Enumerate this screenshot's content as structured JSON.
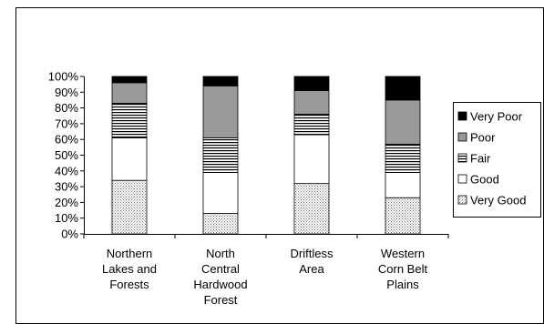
{
  "chart_data": {
    "type": "bar",
    "stacked": true,
    "percent": true,
    "title": "",
    "xlabel": "",
    "ylabel": "",
    "ylim": [
      0,
      100
    ],
    "y_ticks": [
      "0%",
      "10%",
      "20%",
      "30%",
      "40%",
      "50%",
      "60%",
      "70%",
      "80%",
      "90%",
      "100%"
    ],
    "grid": false,
    "legend_position": "right",
    "categories": [
      [
        "Northern",
        "Lakes and",
        "Forests"
      ],
      [
        "North",
        "Central",
        "Hardwood",
        "Forest"
      ],
      [
        "Driftless",
        "Area"
      ],
      [
        "Western",
        "Corn Belt",
        "Plains"
      ]
    ],
    "series": [
      {
        "name": "Very Good",
        "pattern": "dots",
        "color": "#c8c8c8",
        "values": [
          34,
          13,
          32,
          23
        ]
      },
      {
        "name": "Good",
        "pattern": "solid",
        "color": "#ffffff",
        "values": [
          27,
          26,
          31,
          16
        ]
      },
      {
        "name": "Fair",
        "pattern": "hlines",
        "color": "#ffffff",
        "values": [
          22,
          22,
          13,
          18
        ]
      },
      {
        "name": "Poor",
        "pattern": "solid",
        "color": "#999999",
        "values": [
          13,
          33,
          15,
          28
        ]
      },
      {
        "name": "Very Poor",
        "pattern": "solid",
        "color": "#000000",
        "values": [
          4,
          6,
          9,
          15
        ]
      }
    ],
    "legend_order": [
      "Very Poor",
      "Poor",
      "Fair",
      "Good",
      "Very Good"
    ]
  }
}
